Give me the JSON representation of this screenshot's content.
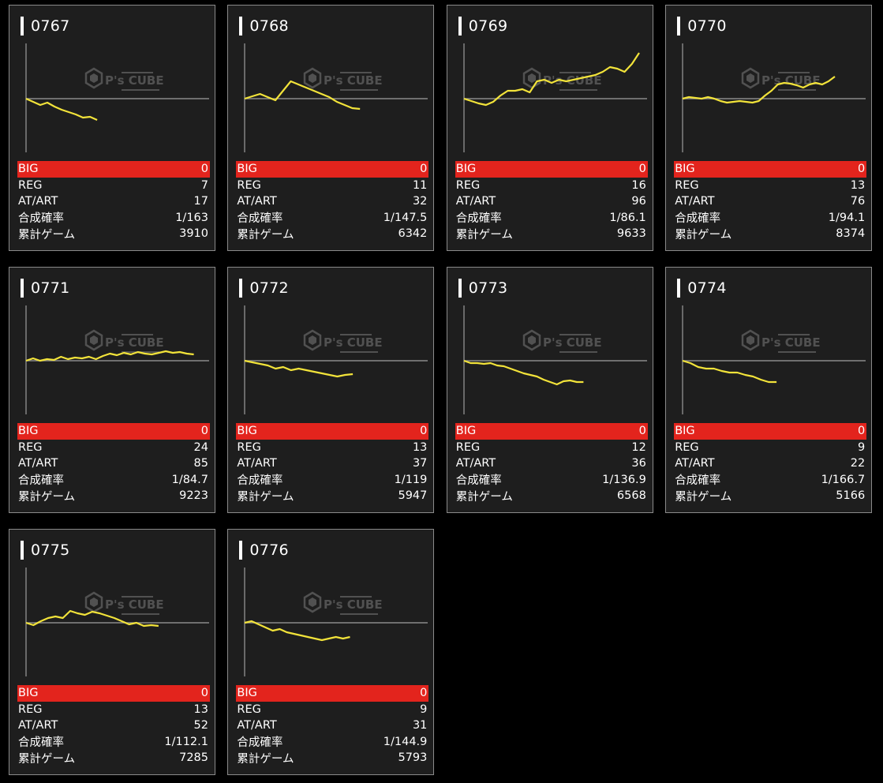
{
  "labels": {
    "big": "BIG",
    "reg": "REG",
    "atart": "AT/ART",
    "prob": "合成確率",
    "games": "累計ゲーム"
  },
  "watermark": {
    "brand": "P's CUBE",
    "icon": "cube-logo-icon"
  },
  "colors": {
    "page_bg": "#000000",
    "card_bg": "#1e1e1e",
    "big_row": "#e3241d",
    "graph_line": "#f2e33a",
    "baseline": "#8a8a8a"
  },
  "machines": [
    {
      "id": "0767",
      "big": "0",
      "reg": "7",
      "atart": "17",
      "prob": "1/163",
      "games": "3910",
      "trend": [
        0,
        -4,
        -8,
        -5,
        -10,
        -14,
        -17,
        -20,
        -24,
        -23,
        -27
      ]
    },
    {
      "id": "0768",
      "big": "0",
      "reg": "11",
      "atart": "32",
      "prob": "1/147.5",
      "games": "6342",
      "trend": [
        0,
        3,
        6,
        2,
        -2,
        10,
        22,
        18,
        14,
        10,
        6,
        2,
        -4,
        -8,
        -12,
        -13
      ]
    },
    {
      "id": "0769",
      "big": "0",
      "reg": "16",
      "atart": "96",
      "prob": "1/86.1",
      "games": "9633",
      "trend": [
        0,
        -3,
        -6,
        -8,
        -4,
        4,
        10,
        10,
        12,
        8,
        22,
        24,
        20,
        24,
        22,
        24,
        26,
        28,
        30,
        34,
        40,
        38,
        34,
        44,
        58
      ]
    },
    {
      "id": "0770",
      "big": "0",
      "reg": "13",
      "atart": "76",
      "prob": "1/94.1",
      "games": "8374",
      "trend": [
        0,
        2,
        1,
        0,
        2,
        0,
        -3,
        -5,
        -4,
        -3,
        -4,
        -5,
        -3,
        4,
        10,
        18,
        20,
        19,
        17,
        14,
        18,
        20,
        18,
        22,
        28
      ]
    },
    {
      "id": "0771",
      "big": "0",
      "reg": "24",
      "atart": "85",
      "prob": "1/84.7",
      "games": "9223",
      "trend": [
        0,
        3,
        0,
        2,
        1,
        5,
        2,
        4,
        3,
        5,
        2,
        6,
        9,
        7,
        10,
        8,
        11,
        9,
        8,
        10,
        12,
        10,
        11,
        9,
        8
      ]
    },
    {
      "id": "0772",
      "big": "0",
      "reg": "13",
      "atart": "37",
      "prob": "1/119",
      "games": "5947",
      "trend": [
        0,
        -2,
        -4,
        -6,
        -10,
        -8,
        -12,
        -10,
        -12,
        -14,
        -16,
        -18,
        -20,
        -18,
        -17
      ]
    },
    {
      "id": "0773",
      "big": "0",
      "reg": "12",
      "atart": "36",
      "prob": "1/136.9",
      "games": "6568",
      "trend": [
        0,
        -3,
        -3,
        -4,
        -3,
        -6,
        -7,
        -10,
        -13,
        -16,
        -18,
        -20,
        -24,
        -27,
        -30,
        -26,
        -25,
        -27,
        -27
      ]
    },
    {
      "id": "0774",
      "big": "0",
      "reg": "9",
      "atart": "22",
      "prob": "1/166.7",
      "games": "5166",
      "trend": [
        0,
        -3,
        -8,
        -10,
        -10,
        -13,
        -15,
        -15,
        -18,
        -20,
        -24,
        -27,
        -27
      ]
    },
    {
      "id": "0775",
      "big": "0",
      "reg": "13",
      "atart": "52",
      "prob": "1/112.1",
      "games": "7285",
      "trend": [
        0,
        -3,
        2,
        6,
        8,
        6,
        15,
        12,
        10,
        14,
        12,
        9,
        6,
        2,
        -2,
        0,
        -4,
        -3,
        -4
      ]
    },
    {
      "id": "0776",
      "big": "0",
      "reg": "9",
      "atart": "31",
      "prob": "1/144.9",
      "games": "5793",
      "trend": [
        0,
        2,
        -2,
        -6,
        -10,
        -8,
        -12,
        -14,
        -16,
        -18,
        -20,
        -22,
        -20,
        -18,
        -20,
        -18
      ]
    }
  ]
}
